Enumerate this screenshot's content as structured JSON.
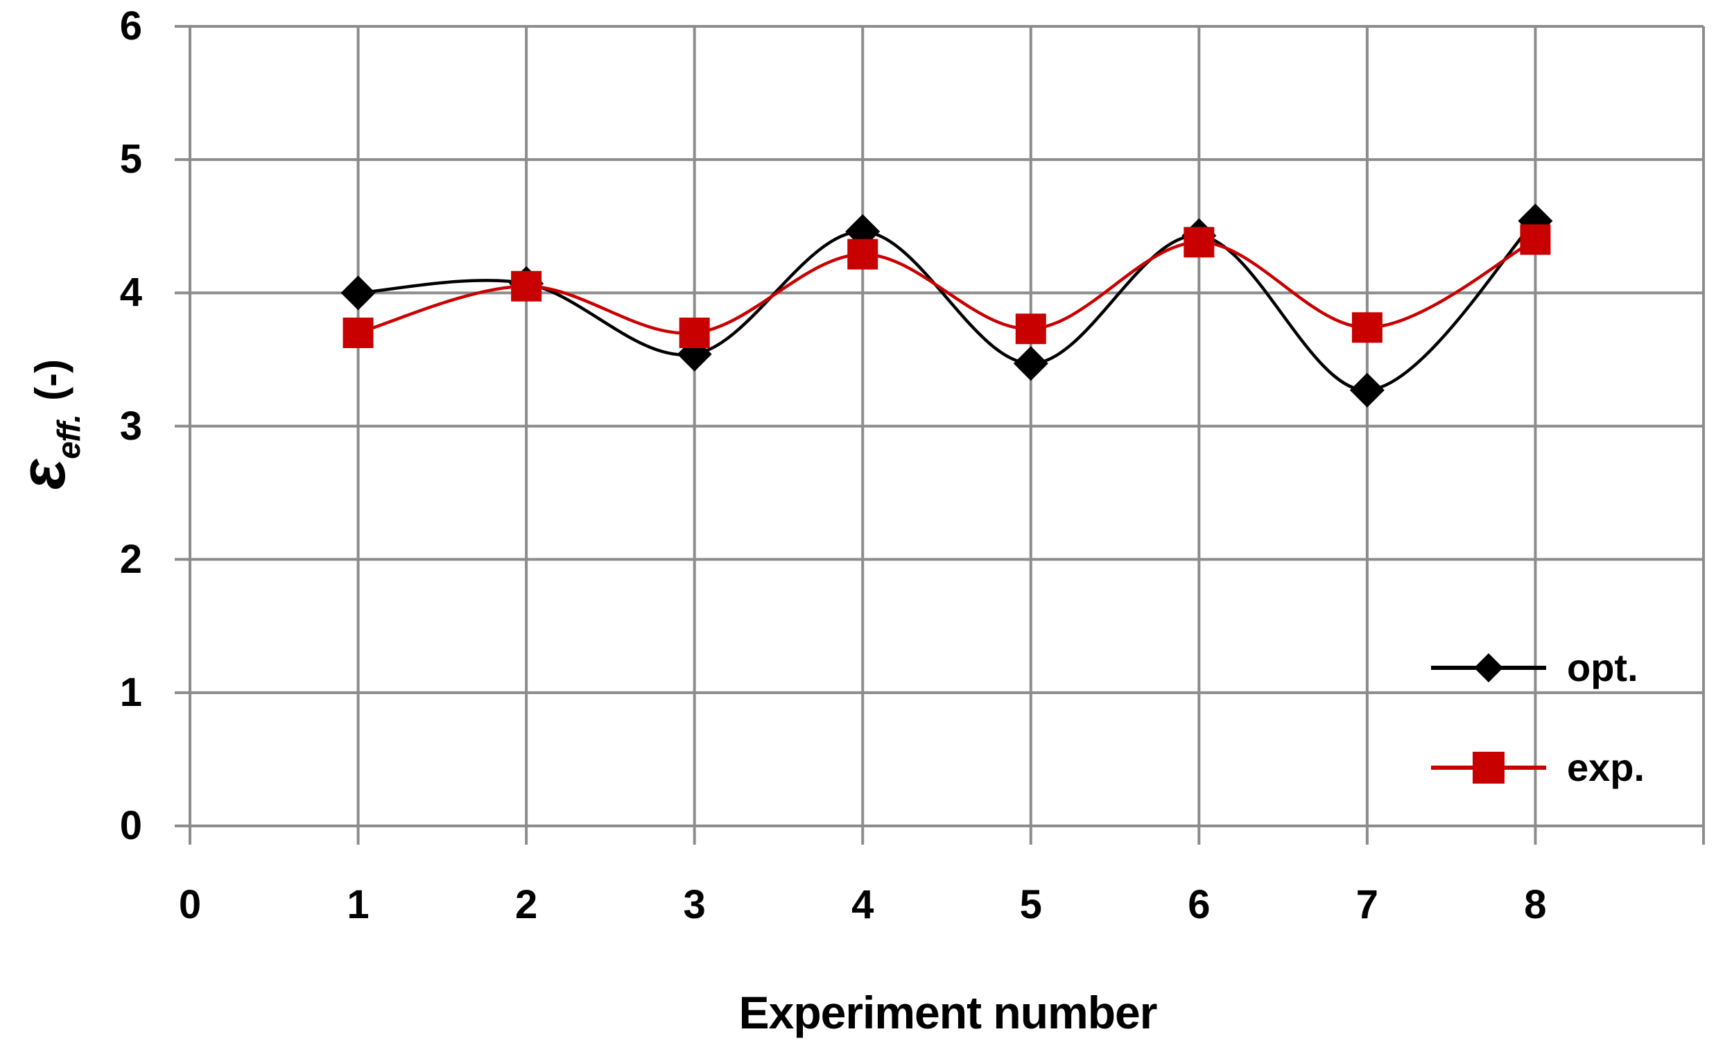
{
  "chart_data": {
    "type": "line",
    "title": "",
    "xlabel": "Experiment number",
    "ylabel": "ε_eff. (-)",
    "ylabel_symbol": "ε",
    "ylabel_subscript": "eff.",
    "ylabel_units": "(-)",
    "x": [
      1,
      2,
      3,
      4,
      5,
      6,
      7,
      8
    ],
    "series": [
      {
        "name": "opt.",
        "color": "#000000",
        "marker": "diamond",
        "smoothed": true,
        "values": [
          4.0,
          4.07,
          3.54,
          4.46,
          3.47,
          4.43,
          3.27,
          4.54
        ]
      },
      {
        "name": "exp.",
        "color": "#C80000",
        "marker": "square",
        "smoothed": true,
        "values": [
          3.7,
          4.05,
          3.7,
          4.29,
          3.73,
          4.38,
          3.74,
          4.4
        ]
      }
    ],
    "xlim": [
      0,
      9
    ],
    "ylim": [
      0,
      6
    ],
    "x_tick_labels": [
      "0",
      "1",
      "2",
      "3",
      "4",
      "5",
      "6",
      "7",
      "8"
    ],
    "y_tick_labels": [
      "0",
      "1",
      "2",
      "3",
      "4",
      "5",
      "6"
    ],
    "grid": true,
    "grid_color": "#8C8C8C",
    "axis_text_color": "#000000",
    "legend_position": "inside-right-lower",
    "legend_entries": [
      "opt.",
      "exp."
    ]
  }
}
